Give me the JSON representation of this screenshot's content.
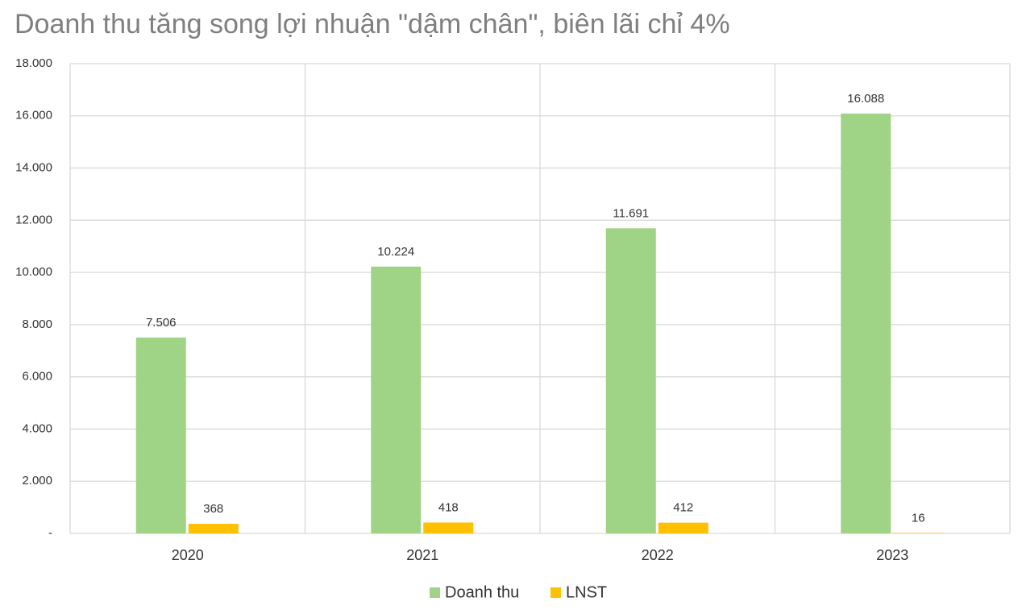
{
  "chart_data": {
    "type": "bar",
    "title": "Doanh thu tăng song lợi nhuận \"dậm chân\", biên lãi chỉ 4%",
    "categories": [
      "2020",
      "2021",
      "2022",
      "2023"
    ],
    "series": [
      {
        "name": "Doanh thu",
        "color": "#9fd486",
        "values": [
          7506,
          10224,
          11691,
          16088
        ],
        "value_labels": [
          "7.506",
          "10.224",
          "11.691",
          "16.088"
        ]
      },
      {
        "name": "LNST",
        "color": "#ffc000",
        "values": [
          368,
          418,
          412,
          16
        ]
      }
    ],
    "ylim": [
      0,
      18000
    ],
    "yticks": [
      {
        "value": 0,
        "label": "-"
      },
      {
        "value": 2000,
        "label": "2.000"
      },
      {
        "value": 4000,
        "label": "4.000"
      },
      {
        "value": 6000,
        "label": "6.000"
      },
      {
        "value": 8000,
        "label": "8.000"
      },
      {
        "value": 10000,
        "label": "10.000"
      },
      {
        "value": 12000,
        "label": "12.000"
      },
      {
        "value": 14000,
        "label": "14.000"
      },
      {
        "value": 16000,
        "label": "16.000"
      },
      {
        "value": 18000,
        "label": "18.000"
      }
    ],
    "grid": true
  }
}
